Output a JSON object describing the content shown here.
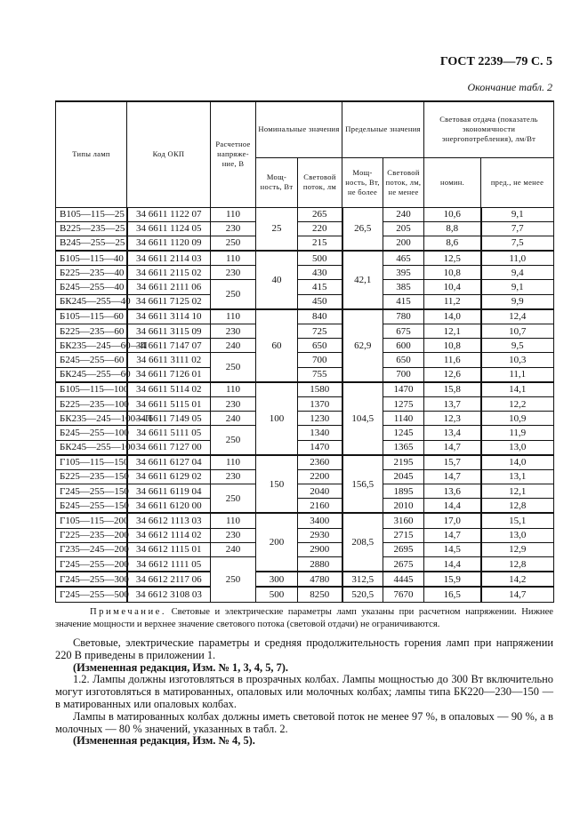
{
  "header": {
    "title": "ГОСТ 2239—79 С. 5",
    "continuation": "Окончание табл. 2"
  },
  "table": {
    "headers": {
      "type": "Типы ламп",
      "code": "Код ОКП",
      "voltage": "Расчетное напряже-ние, В",
      "nominal": "Номинальные значения",
      "limit": "Предельные значения",
      "efficacy": "Световая отдача (показатель экономичности энергопотребления), лм/Вт",
      "nom_power": "Мощ-ность, Вт",
      "nom_flux": "Световой поток, лм",
      "max_power": "Мощ-ность, Вт, не более",
      "min_flux": "Световой поток, лм, не менее",
      "eff_nom": "номин.",
      "eff_min": "пред., не менее"
    },
    "rows": [
      [
        "В105—115—25",
        "34 6611 1122 07",
        "110",
        "25",
        "265",
        "26,5",
        "240",
        "10,6",
        "9,1"
      ],
      [
        "В225—235—25",
        "34 6611 1124 05",
        "230",
        "25",
        "220",
        "26,5",
        "205",
        "8,8",
        "7,7"
      ],
      [
        "В245—255—25",
        "34 6611 1120 09",
        "250",
        "25",
        "215",
        "26,5",
        "200",
        "8,6",
        "7,5"
      ],
      [
        "Б105—115—40",
        "34 6611 2114 03",
        "110",
        "40",
        "500",
        "42,1",
        "465",
        "12,5",
        "11,0"
      ],
      [
        "Б225—235—40",
        "34 6611 2115 02",
        "230",
        "40",
        "430",
        "42,1",
        "395",
        "10,8",
        "9,4"
      ],
      [
        "Б245—255—40",
        "34 6611 2111 06",
        "250",
        "40",
        "415",
        "42,1",
        "385",
        "10,4",
        "9,1"
      ],
      [
        "БК245—255—40",
        "34 6611 7125 02",
        "250",
        "40",
        "450",
        "42,1",
        "415",
        "11,2",
        "9,9"
      ],
      [
        "Б105—115—60",
        "34 6611 3114 10",
        "110",
        "60",
        "840",
        "62,9",
        "780",
        "14,0",
        "12,4"
      ],
      [
        "Б225—235—60",
        "34 6611 3115 09",
        "230",
        "60",
        "725",
        "62,9",
        "675",
        "12,1",
        "10,7"
      ],
      [
        "БК235—245—60—П",
        "34 6611 7147 07",
        "240",
        "60",
        "650",
        "62,9",
        "600",
        "10,8",
        "9,5"
      ],
      [
        "Б245—255—60",
        "34 6611 3111 02",
        "250",
        "60",
        "700",
        "62,9",
        "650",
        "11,6",
        "10,3"
      ],
      [
        "БК245—255—60",
        "34 6611 7126 01",
        "250",
        "60",
        "755",
        "62,9",
        "700",
        "12,6",
        "11,1"
      ],
      [
        "Б105—115—100",
        "34 6611 5114 02",
        "110",
        "100",
        "1580",
        "104,5",
        "1470",
        "15,8",
        "14,1"
      ],
      [
        "Б225—235—100",
        "34 6611 5115 01",
        "230",
        "100",
        "1370",
        "104,5",
        "1275",
        "13,7",
        "12,2"
      ],
      [
        "БК235—245—100—П",
        "34 6611 7149 05",
        "240",
        "100",
        "1230",
        "104,5",
        "1140",
        "12,3",
        "10,9"
      ],
      [
        "Б245—255—100",
        "34 6611 5111 05",
        "250",
        "100",
        "1340",
        "104,5",
        "1245",
        "13,4",
        "11,9"
      ],
      [
        "БК245—255—100",
        "34 6611 7127 00",
        "250",
        "100",
        "1470",
        "104,5",
        "1365",
        "14,7",
        "13,0"
      ],
      [
        "Г105—115—150",
        "34 6611 6127 04",
        "110",
        "150",
        "2360",
        "156,5",
        "2195",
        "15,7",
        "14,0"
      ],
      [
        "Б225—235—150",
        "34 6611 6129 02",
        "230",
        "150",
        "2200",
        "156,5",
        "2045",
        "14,7",
        "13,1"
      ],
      [
        "Г245—255—150",
        "34 6611 6119 04",
        "250",
        "150",
        "2040",
        "156,5",
        "1895",
        "13,6",
        "12,1"
      ],
      [
        "Б245—255—150",
        "34 6611 6120 00",
        "250",
        "150",
        "2160",
        "156,5",
        "2010",
        "14,4",
        "12,8"
      ],
      [
        "Г105—115—200",
        "34 6612 1113 03",
        "110",
        "200",
        "3400",
        "208,5",
        "3160",
        "17,0",
        "15,1"
      ],
      [
        "Г225—235—200",
        "34 6612 1114 02",
        "230",
        "200",
        "2930",
        "208,5",
        "2715",
        "14,7",
        "13,0"
      ],
      [
        "Г235—245—200",
        "34 6612 1115 01",
        "240",
        "200",
        "2900",
        "208,5",
        "2695",
        "14,5",
        "12,9"
      ],
      [
        "Г245—255—200",
        "34 6612 1111 05",
        "250",
        "200",
        "2880",
        "208,5",
        "2675",
        "14,4",
        "12,8"
      ],
      [
        "Г245—255—300",
        "34 6612 2117 06",
        "250",
        "300",
        "4780",
        "312,5",
        "4445",
        "15,9",
        "14,2"
      ],
      [
        "Г245—255—500",
        "34 6612 3108 03",
        "250",
        "500",
        "8250",
        "520,5",
        "7670",
        "16,5",
        "14,7"
      ]
    ]
  },
  "note": {
    "label": "Примечание.",
    "text": "Световые и электрические параметры ламп указаны при расчетном напряжении. Нижнее значение мощности и верхнее значение светового потока (световой отдачи) не ограничиваются."
  },
  "body": {
    "p1": "Световые, электрические параметры и средняя продолжительность горения ламп при напряжении 220 В приведены в приложении 1.",
    "p1_amend": "(Измененная редакция, Изм. № 1, 3, 4, 5, 7).",
    "p2": "1.2. Лампы должны изготовляться в прозрачных колбах. Лампы мощностью до 300 Вт включительно могут изготовляться в матированных, опаловых или молочных колбах; лампы типа БК220—230—150 — в матированных или опаловых колбах.",
    "p3": "Лампы в матированных колбах должны иметь световой поток не менее 97 %, в опаловых — 90 %, а в молочных — 80 % значений, указанных в табл. 2.",
    "p3_amend": "(Измененная редакция, Изм. № 4, 5)."
  }
}
